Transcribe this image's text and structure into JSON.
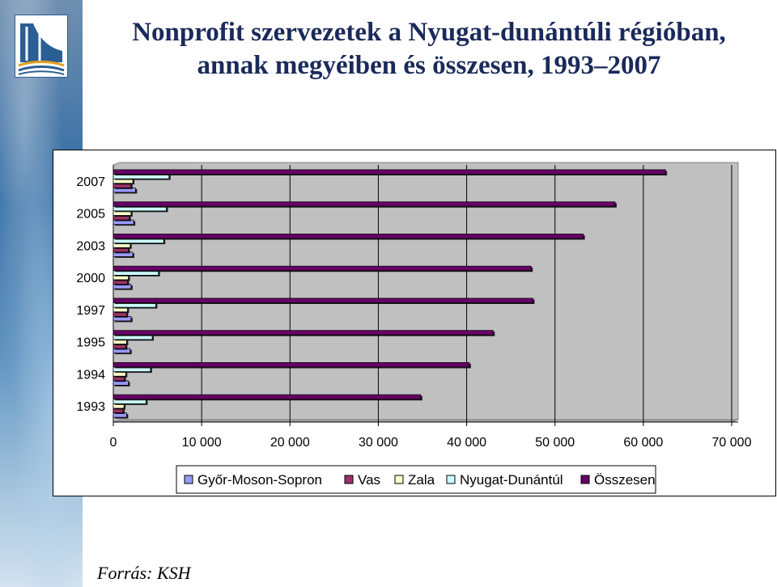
{
  "page": {
    "title_line1": "Nonprofit szervezetek a Nyugat-dunántúli régióban,",
    "title_line2": "annak megyéiben és összesen, 1993–2007",
    "source": "Forrás: KSH"
  },
  "chart_data": {
    "type": "bar",
    "orientation": "horizontal",
    "categories": [
      "1993",
      "1994",
      "1995",
      "1997",
      "2000",
      "2003",
      "2005",
      "2007"
    ],
    "series": [
      {
        "name": "Győr-Moson-Sopron",
        "color": "#9999ff",
        "values": [
          1500,
          1700,
          1900,
          2000,
          2000,
          2200,
          2300,
          2500
        ]
      },
      {
        "name": "Vas",
        "color": "#993366",
        "values": [
          1100,
          1250,
          1400,
          1500,
          1600,
          1700,
          1800,
          2000
        ]
      },
      {
        "name": "Zala",
        "color": "#ffffcc",
        "values": [
          1200,
          1400,
          1500,
          1600,
          1700,
          1900,
          2000,
          2200
        ]
      },
      {
        "name": "Nyugat-Dunántúl",
        "color": "#ccffff",
        "values": [
          3700,
          4200,
          4400,
          4800,
          5100,
          5700,
          6000,
          6300
        ]
      },
      {
        "name": "Összesen",
        "color": "#660066",
        "values": [
          34800,
          40300,
          43000,
          47500,
          47300,
          53200,
          56800,
          62500
        ]
      }
    ],
    "xlim": [
      0,
      70000
    ],
    "tick_labels": [
      "0",
      "10 000",
      "20 000",
      "30 000",
      "40 000",
      "50 000",
      "60 000",
      "70 000"
    ],
    "grid": true,
    "legend_position": "bottom"
  }
}
